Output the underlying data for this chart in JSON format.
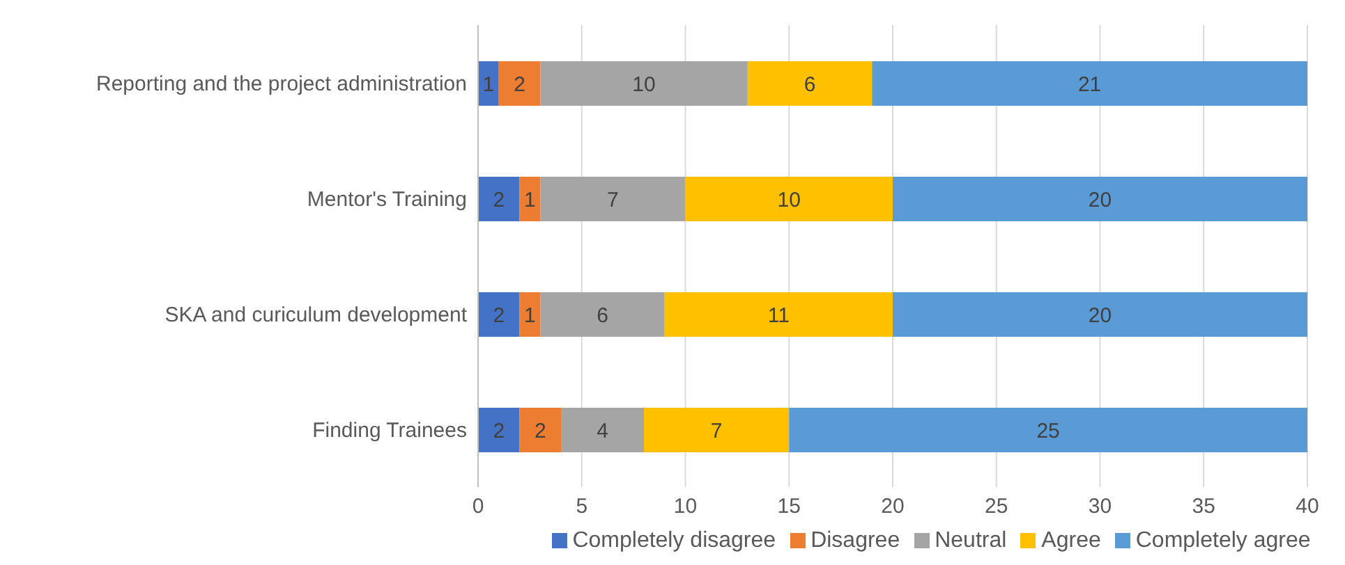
{
  "chart_data": {
    "type": "bar",
    "orientation": "horizontal",
    "stacked": true,
    "categories": [
      "Reporting and the project administration",
      "Mentor's Training",
      "SKA and curiculum development",
      "Finding Trainees"
    ],
    "series": [
      {
        "name": "Completely disagree",
        "color": "#4472c4",
        "values": [
          1,
          2,
          2,
          2
        ]
      },
      {
        "name": "Disagree",
        "color": "#ed7d31",
        "values": [
          2,
          1,
          1,
          2
        ]
      },
      {
        "name": "Neutral",
        "color": "#a5a5a5",
        "values": [
          10,
          7,
          6,
          4
        ]
      },
      {
        "name": "Agree",
        "color": "#ffc000",
        "values": [
          6,
          10,
          11,
          7
        ]
      },
      {
        "name": "Completely agree",
        "color": "#5b9bd5",
        "values": [
          21,
          20,
          20,
          25
        ]
      }
    ],
    "xlim": [
      0,
      40
    ],
    "xticks": [
      0,
      5,
      10,
      15,
      20,
      25,
      30,
      35,
      40
    ],
    "grid": "x",
    "legend": "bottom",
    "data_labels": true
  }
}
